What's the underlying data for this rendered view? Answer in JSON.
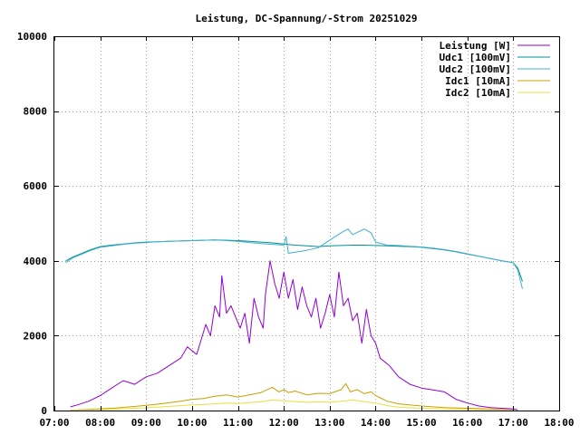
{
  "chart_data": {
    "type": "line",
    "title": "Leistung, DC-Spannung/-Strom 20251029",
    "xlabel": "",
    "ylabel": "",
    "x_unit": "time of day (hours)",
    "xlim": [
      7,
      18
    ],
    "ylim": [
      0,
      10000
    ],
    "grid": true,
    "legend_position": "top-right",
    "x_ticks": [
      {
        "value": 7,
        "label": "07:00"
      },
      {
        "value": 8,
        "label": "08:00"
      },
      {
        "value": 9,
        "label": "09:00"
      },
      {
        "value": 10,
        "label": "10:00"
      },
      {
        "value": 11,
        "label": "11:00"
      },
      {
        "value": 12,
        "label": "12:00"
      },
      {
        "value": 13,
        "label": "13:00"
      },
      {
        "value": 14,
        "label": "14:00"
      },
      {
        "value": 15,
        "label": "15:00"
      },
      {
        "value": 16,
        "label": "16:00"
      },
      {
        "value": 17,
        "label": "17:00"
      },
      {
        "value": 18,
        "label": "18:00"
      }
    ],
    "y_ticks": [
      {
        "value": 0,
        "label": "0"
      },
      {
        "value": 2000,
        "label": "2000"
      },
      {
        "value": 4000,
        "label": "4000"
      },
      {
        "value": 6000,
        "label": "6000"
      },
      {
        "value": 8000,
        "label": "8000"
      },
      {
        "value": 10000,
        "label": "10000"
      }
    ],
    "series": [
      {
        "name": "Leistung [W]",
        "color": "#9400d3",
        "x": [
          7.35,
          7.5,
          7.75,
          8.0,
          8.25,
          8.5,
          8.75,
          9.0,
          9.25,
          9.5,
          9.75,
          9.9,
          10.1,
          10.3,
          10.4,
          10.5,
          10.6,
          10.65,
          10.75,
          10.85,
          10.95,
          11.05,
          11.15,
          11.25,
          11.35,
          11.45,
          11.55,
          11.6,
          11.7,
          11.8,
          11.9,
          12.0,
          12.1,
          12.2,
          12.3,
          12.4,
          12.5,
          12.6,
          12.7,
          12.8,
          12.9,
          13.0,
          13.1,
          13.2,
          13.3,
          13.4,
          13.5,
          13.6,
          13.7,
          13.8,
          13.9,
          14.0,
          14.1,
          14.3,
          14.5,
          14.75,
          15.0,
          15.25,
          15.5,
          15.75,
          16.0,
          16.25,
          16.5,
          16.75,
          17.0,
          17.1
        ],
        "values": [
          100,
          150,
          250,
          400,
          600,
          800,
          700,
          900,
          1000,
          1200,
          1400,
          1700,
          1500,
          2300,
          2000,
          2800,
          2500,
          3600,
          2600,
          2800,
          2500,
          2200,
          2600,
          1800,
          3000,
          2500,
          2200,
          3100,
          4000,
          3400,
          3000,
          3700,
          3000,
          3500,
          2700,
          3300,
          2800,
          2500,
          3000,
          2200,
          2600,
          3100,
          2500,
          3700,
          2800,
          3000,
          2400,
          2600,
          1800,
          2700,
          2000,
          1800,
          1400,
          1200,
          900,
          700,
          600,
          550,
          500,
          300,
          200,
          120,
          80,
          60,
          40,
          20
        ]
      },
      {
        "name": "Udc1 [100mV]",
        "color": "#009090",
        "x": [
          7.25,
          7.4,
          7.6,
          7.8,
          8.0,
          8.25,
          8.5,
          8.75,
          9.0,
          9.25,
          9.5,
          9.75,
          10.0,
          10.25,
          10.5,
          10.75,
          11.0,
          11.25,
          11.5,
          11.75,
          12.0,
          12.25,
          12.5,
          12.75,
          13.0,
          13.25,
          13.5,
          13.75,
          14.0,
          14.25,
          14.5,
          14.75,
          15.0,
          15.25,
          15.5,
          15.75,
          16.0,
          16.25,
          16.5,
          16.75,
          17.0,
          17.1,
          17.2
        ],
        "values": [
          4000,
          4100,
          4200,
          4300,
          4380,
          4420,
          4450,
          4480,
          4500,
          4510,
          4520,
          4530,
          4540,
          4550,
          4560,
          4550,
          4540,
          4520,
          4500,
          4480,
          4450,
          4420,
          4400,
          4380,
          4400,
          4410,
          4420,
          4420,
          4410,
          4400,
          4390,
          4380,
          4360,
          4330,
          4290,
          4240,
          4180,
          4120,
          4060,
          4000,
          3950,
          3800,
          3450
        ]
      },
      {
        "name": "Udc2 [100mV]",
        "color": "#40b0d0",
        "x": [
          7.25,
          7.4,
          7.6,
          7.8,
          8.0,
          8.25,
          8.5,
          8.75,
          9.0,
          9.25,
          9.5,
          9.75,
          10.0,
          10.25,
          10.5,
          10.75,
          11.0,
          11.25,
          11.5,
          11.75,
          12.0,
          12.05,
          12.1,
          12.25,
          12.5,
          12.75,
          13.0,
          13.25,
          13.4,
          13.5,
          13.75,
          13.9,
          14.0,
          14.25,
          14.5,
          14.75,
          15.0,
          15.25,
          15.5,
          15.75,
          16.0,
          16.25,
          16.5,
          16.75,
          17.0,
          17.1,
          17.2
        ],
        "values": [
          3950,
          4080,
          4180,
          4280,
          4360,
          4400,
          4440,
          4470,
          4490,
          4510,
          4520,
          4530,
          4540,
          4550,
          4560,
          4540,
          4520,
          4490,
          4460,
          4440,
          4420,
          4650,
          4200,
          4230,
          4280,
          4350,
          4550,
          4750,
          4850,
          4700,
          4850,
          4750,
          4500,
          4420,
          4410,
          4390,
          4370,
          4340,
          4300,
          4250,
          4190,
          4120,
          4060,
          4000,
          3950,
          3750,
          3250
        ]
      },
      {
        "name": "Idc1 [10mA]",
        "color": "#c8a000",
        "x": [
          7.35,
          7.75,
          8.25,
          8.75,
          9.25,
          9.75,
          10.0,
          10.25,
          10.5,
          10.75,
          11.0,
          11.25,
          11.5,
          11.75,
          11.9,
          12.0,
          12.1,
          12.25,
          12.5,
          12.75,
          13.0,
          13.25,
          13.35,
          13.45,
          13.6,
          13.75,
          13.9,
          14.0,
          14.25,
          14.5,
          15.0,
          15.5,
          16.0,
          16.5,
          17.0
        ],
        "values": [
          10,
          30,
          60,
          110,
          170,
          250,
          300,
          320,
          380,
          420,
          360,
          420,
          480,
          620,
          500,
          560,
          480,
          520,
          420,
          460,
          450,
          560,
          720,
          500,
          560,
          450,
          500,
          400,
          250,
          180,
          120,
          80,
          60,
          40,
          20
        ]
      },
      {
        "name": "Idc2 [10mA]",
        "color": "#e8e040",
        "x": [
          7.35,
          7.75,
          8.25,
          8.75,
          9.25,
          9.75,
          10.0,
          10.25,
          10.5,
          10.75,
          11.0,
          11.25,
          11.5,
          11.75,
          12.0,
          12.25,
          12.5,
          12.75,
          13.0,
          13.25,
          13.5,
          13.75,
          14.0,
          14.25,
          14.5,
          15.0,
          15.5,
          16.0,
          16.5,
          17.0
        ],
        "values": [
          5,
          15,
          30,
          60,
          90,
          130,
          150,
          160,
          180,
          200,
          190,
          210,
          230,
          280,
          260,
          240,
          220,
          230,
          220,
          250,
          280,
          240,
          200,
          130,
          90,
          60,
          40,
          30,
          20,
          10
        ]
      }
    ]
  }
}
